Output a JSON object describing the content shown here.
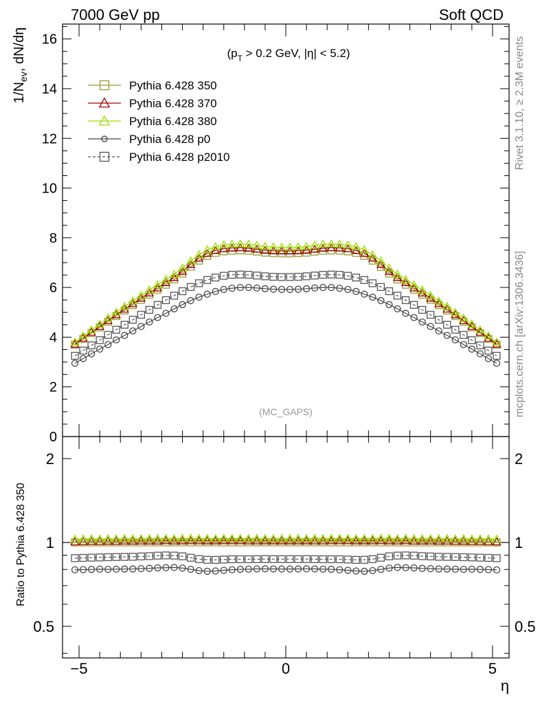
{
  "header": {
    "left": "7000 GeV pp",
    "right": "Soft QCD"
  },
  "side": {
    "rivet": "Rivet 3.1.10, ≥ 2.3M events",
    "source": "mcplots.cern.ch [arXiv:1306.3436]"
  },
  "chart_data": [
    {
      "type": "line",
      "panel": "main",
      "title": "",
      "annotation_parts": {
        "pre": "(p",
        "sub": "T",
        "post": " > 0.2 GeV, |η| < 5.2)"
      },
      "watermark": "(MC_GAPS)",
      "xlabel": "η",
      "ylabel_parts": {
        "a": "1/N",
        "sub": "ev",
        "b": ", dN/dη"
      },
      "xlim": [
        -5.4,
        5.4
      ],
      "ylim": [
        0,
        16.6
      ],
      "yticks": [
        0,
        2,
        4,
        6,
        8,
        10,
        12,
        14,
        16
      ],
      "yticklabels": [
        "0",
        "2",
        "4",
        "6",
        "8",
        "10",
        "12",
        "14",
        "16"
      ],
      "legend_position": "top-left",
      "x": [
        -5.1,
        -4.9,
        -4.7,
        -4.5,
        -4.3,
        -4.1,
        -3.9,
        -3.7,
        -3.5,
        -3.3,
        -3.1,
        -2.9,
        -2.7,
        -2.5,
        -2.3,
        -2.1,
        -1.9,
        -1.7,
        -1.5,
        -1.3,
        -1.1,
        -0.9,
        -0.7,
        -0.5,
        -0.3,
        -0.1,
        0.1,
        0.3,
        0.5,
        0.7,
        0.9,
        1.1,
        1.3,
        1.5,
        1.7,
        1.9,
        2.1,
        2.3,
        2.5,
        2.7,
        2.9,
        3.1,
        3.3,
        3.5,
        3.7,
        3.9,
        4.1,
        4.3,
        4.5,
        4.7,
        4.9,
        5.1
      ],
      "series": [
        {
          "name": "Pythia 6.428 350",
          "color": "#999933",
          "marker": "square-open",
          "line": "solid",
          "values": [
            3.7,
            3.93,
            4.16,
            4.39,
            4.62,
            4.85,
            5.07,
            5.29,
            5.5,
            5.71,
            5.91,
            6.11,
            6.32,
            6.56,
            6.83,
            7.08,
            7.27,
            7.39,
            7.45,
            7.48,
            7.49,
            7.48,
            7.44,
            7.4,
            7.38,
            7.37,
            7.37,
            7.38,
            7.4,
            7.44,
            7.48,
            7.49,
            7.48,
            7.45,
            7.39,
            7.27,
            7.08,
            6.83,
            6.56,
            6.32,
            6.11,
            5.91,
            5.71,
            5.5,
            5.29,
            5.07,
            4.85,
            4.62,
            4.39,
            4.16,
            3.93,
            3.7
          ]
        },
        {
          "name": "Pythia 6.428 370",
          "color": "#990000",
          "marker": "triangle-open",
          "line": "solid",
          "values": [
            3.72,
            3.96,
            4.2,
            4.43,
            4.67,
            4.9,
            5.13,
            5.35,
            5.57,
            5.78,
            5.98,
            6.2,
            6.4,
            6.65,
            6.93,
            7.18,
            7.37,
            7.49,
            7.56,
            7.59,
            7.6,
            7.58,
            7.54,
            7.5,
            7.48,
            7.47,
            7.47,
            7.48,
            7.5,
            7.54,
            7.58,
            7.6,
            7.59,
            7.56,
            7.49,
            7.37,
            7.18,
            6.93,
            6.65,
            6.4,
            6.2,
            5.98,
            5.78,
            5.57,
            5.35,
            5.13,
            4.9,
            4.67,
            4.43,
            4.2,
            3.96,
            3.72
          ]
        },
        {
          "name": "Pythia 6.428 380",
          "color": "#99dd00",
          "marker": "triangle-open",
          "line": "solid",
          "values": [
            3.8,
            4.05,
            4.29,
            4.52,
            4.77,
            5.0,
            5.24,
            5.46,
            5.68,
            5.9,
            6.11,
            6.32,
            6.53,
            6.79,
            7.07,
            7.32,
            7.52,
            7.64,
            7.71,
            7.74,
            7.75,
            7.74,
            7.7,
            7.65,
            7.63,
            7.62,
            7.62,
            7.63,
            7.65,
            7.7,
            7.74,
            7.75,
            7.74,
            7.71,
            7.64,
            7.52,
            7.32,
            7.07,
            6.79,
            6.53,
            6.32,
            6.11,
            5.9,
            5.68,
            5.46,
            5.24,
            5.0,
            4.77,
            4.52,
            4.29,
            4.05,
            3.8
          ]
        },
        {
          "name": "Pythia 6.428 p0",
          "color": "#444444",
          "marker": "circle-open",
          "line": "solid",
          "values": [
            2.95,
            3.14,
            3.33,
            3.52,
            3.7,
            3.89,
            4.07,
            4.25,
            4.43,
            4.61,
            4.79,
            4.96,
            5.14,
            5.31,
            5.47,
            5.61,
            5.73,
            5.84,
            5.92,
            5.97,
            6.0,
            6.0,
            5.98,
            5.95,
            5.93,
            5.92,
            5.92,
            5.93,
            5.95,
            5.98,
            6.0,
            6.0,
            5.97,
            5.92,
            5.84,
            5.73,
            5.61,
            5.47,
            5.31,
            5.14,
            4.96,
            4.79,
            4.61,
            4.43,
            4.25,
            4.07,
            3.89,
            3.7,
            3.52,
            3.33,
            3.14,
            2.95
          ]
        },
        {
          "name": "Pythia 6.428 p2010",
          "color": "#555555",
          "marker": "square-open",
          "line": "dashed",
          "values": [
            3.25,
            3.46,
            3.67,
            3.88,
            4.09,
            4.3,
            4.5,
            4.7,
            4.9,
            5.1,
            5.3,
            5.49,
            5.67,
            5.85,
            6.02,
            6.17,
            6.3,
            6.4,
            6.47,
            6.51,
            6.52,
            6.51,
            6.48,
            6.45,
            6.43,
            6.42,
            6.42,
            6.43,
            6.45,
            6.48,
            6.51,
            6.52,
            6.51,
            6.47,
            6.4,
            6.3,
            6.17,
            6.02,
            5.85,
            5.67,
            5.49,
            5.3,
            5.1,
            4.9,
            4.7,
            4.5,
            4.3,
            4.09,
            3.88,
            3.67,
            3.46,
            3.25
          ]
        }
      ]
    },
    {
      "type": "line",
      "panel": "ratio",
      "title": "",
      "xlabel": "η",
      "ylabel": "Ratio to Pythia 6.428 350",
      "xlim": [
        -5.4,
        5.4
      ],
      "ylim": [
        0.385,
        2.4
      ],
      "log_y": true,
      "xticks": [
        -5,
        0,
        5
      ],
      "xticklabels": [
        "−5",
        "0",
        "5"
      ],
      "yticks": [
        0.5,
        1,
        2
      ],
      "yticklabels": [
        "0.5",
        "1",
        "2"
      ],
      "reference_line": 1,
      "series": [
        {
          "name": "Pythia 6.428 350",
          "color": "#999933",
          "marker": "square-open",
          "line": "solid",
          "values": "ratio"
        },
        {
          "name": "Pythia 6.428 370",
          "color": "#990000",
          "marker": "triangle-open",
          "line": "solid",
          "values": "ratio"
        },
        {
          "name": "Pythia 6.428 380",
          "color": "#99dd00",
          "marker": "triangle-open",
          "line": "solid",
          "values": "ratio"
        },
        {
          "name": "Pythia 6.428 p0",
          "color": "#444444",
          "marker": "circle-open",
          "line": "solid",
          "values": "ratio"
        },
        {
          "name": "Pythia 6.428 p2010",
          "color": "#555555",
          "marker": "square-open",
          "line": "dashed",
          "values": "ratio"
        }
      ]
    }
  ]
}
